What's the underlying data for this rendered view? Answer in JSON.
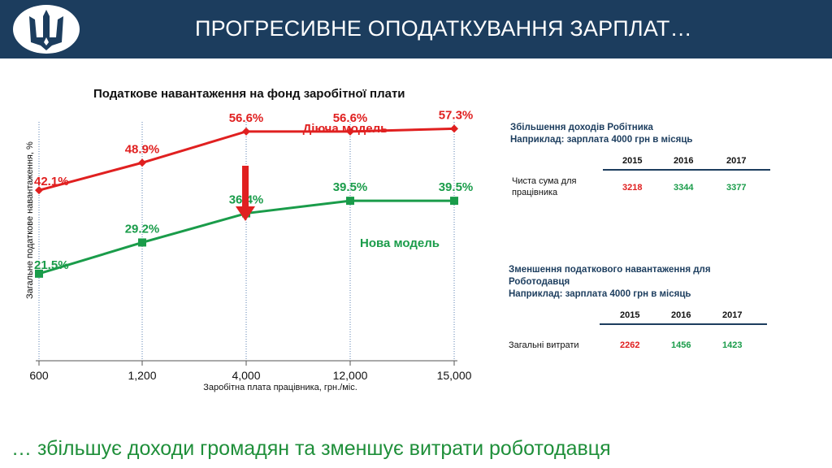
{
  "header": {
    "title": "ПРОГРЕСИВНЕ ОПОДАТКУВАННЯ ЗАРПЛАТ…",
    "logo_icon": "trident-coat-of-arms-icon"
  },
  "chart_data": {
    "type": "line",
    "title": "Податкове навантаження на фонд заробітної плати",
    "xlabel": "Заробітна плата працівника, грн./міс.",
    "ylabel": "Загальне податкове навантаження, %",
    "categories": [
      "600",
      "1,200",
      "4,000",
      "12,000",
      "15,000"
    ],
    "series": [
      {
        "name": "Діюча модель",
        "color": "#e02020",
        "marker": "diamond",
        "values": [
          42.1,
          48.9,
          56.6,
          56.6,
          57.3
        ],
        "labels": [
          "42.1%",
          "48.9%",
          "56.6%",
          "56.6%",
          "57.3%"
        ]
      },
      {
        "name": "Нова модель",
        "color": "#1a9c4a",
        "marker": "square",
        "values": [
          21.5,
          29.2,
          36.4,
          39.5,
          39.5
        ],
        "labels": [
          "21.5%",
          "29.2%",
          "36.4%",
          "39.5%",
          "39.5%"
        ]
      }
    ],
    "ylim": [
      0,
      65
    ],
    "grid": "vertical dotted",
    "annotation": "red down arrow at 4,000"
  },
  "panel1": {
    "title_line1": "Збільшення доходів Робітника",
    "title_line2": "Наприклад:  зарплата 4000 грн в місяць",
    "years": [
      "2015",
      "2016",
      "2017"
    ],
    "row_label_line1": "Чиста сума для",
    "row_label_line2": "працівника",
    "values": [
      "3218",
      "3344",
      "3377"
    ],
    "colors": [
      "#e02020",
      "#1a9c4a",
      "#1a9c4a"
    ]
  },
  "panel2": {
    "title_line1": "Зменшення податкового навантаження для",
    "title_line2": "Роботодавця",
    "title_line3": "Наприклад: зарплата 4000 грн в місяць",
    "years": [
      "2015",
      "2016",
      "2017"
    ],
    "row_label": "Загальні витрати",
    "values": [
      "2262",
      "1456",
      "1423"
    ],
    "colors": [
      "#e02020",
      "#1a9c4a",
      "#1a9c4a"
    ]
  },
  "footer": {
    "text": "… збільшує доходи громадян та зменшує витрати роботодавця"
  }
}
